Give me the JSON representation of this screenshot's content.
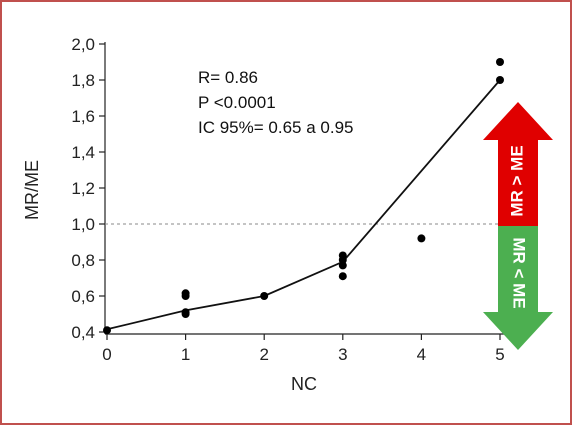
{
  "chart_data": {
    "type": "scatter",
    "xlabel": "NC",
    "ylabel": "MR/ME",
    "xlim": [
      0,
      5
    ],
    "ylim": [
      0.4,
      2.0
    ],
    "x_ticks": [
      "0",
      "1",
      "2",
      "3",
      "4",
      "5"
    ],
    "y_ticks": [
      "0,4",
      "0,6",
      "0,8",
      "1,0",
      "1,2",
      "1,4",
      "1,6",
      "1,8",
      "2,0"
    ],
    "points": [
      {
        "x": 0,
        "y": 0.41
      },
      {
        "x": 1,
        "y": 0.5
      },
      {
        "x": 1,
        "y": 0.51
      },
      {
        "x": 1,
        "y": 0.6
      },
      {
        "x": 1,
        "y": 0.615
      },
      {
        "x": 2,
        "y": 0.6
      },
      {
        "x": 3,
        "y": 0.71
      },
      {
        "x": 3,
        "y": 0.77
      },
      {
        "x": 3,
        "y": 0.8
      },
      {
        "x": 3,
        "y": 0.825
      },
      {
        "x": 4,
        "y": 0.92
      },
      {
        "x": 5,
        "y": 1.8
      },
      {
        "x": 5,
        "y": 1.9
      }
    ],
    "trend_line": [
      {
        "x": 0,
        "y": 0.415
      },
      {
        "x": 1,
        "y": 0.52
      },
      {
        "x": 2,
        "y": 0.6
      },
      {
        "x": 3,
        "y": 0.79
      },
      {
        "x": 5,
        "y": 1.8
      }
    ],
    "reference_line": {
      "y": 1.0,
      "style": "dashed"
    },
    "grid": false,
    "annotations": [
      "R= 0.86",
      "P <0.0001",
      "IC 95%= 0.65 a 0.95"
    ],
    "arrows": {
      "up_label": "MR > ME",
      "up_color": "#e00000",
      "down_label": "MR < ME",
      "down_color": "#4caf50"
    }
  }
}
